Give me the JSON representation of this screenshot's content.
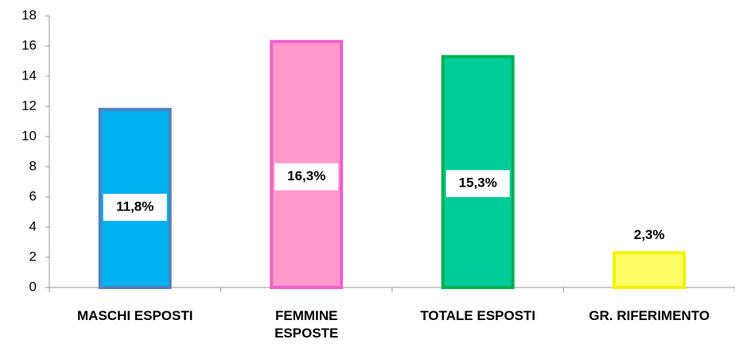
{
  "chart_data": {
    "type": "bar",
    "categories": [
      "MASCHI ESPOSTI",
      "FEMMINE ESPOSTE",
      "TOTALE ESPOSTI",
      "GR. RIFERIMENTO"
    ],
    "values": [
      11.8,
      16.3,
      15.3,
      2.3
    ],
    "value_labels": [
      "11,8%",
      "16,3%",
      "15,3%",
      "2,3%"
    ],
    "colors": [
      "#00b0f0",
      "#ff99cc",
      "#00cc99",
      "#ffff66"
    ],
    "edgecolors": [
      "#4f81bd",
      "#f060c8",
      "#00b050",
      "#f2f200"
    ],
    "ylim": [
      0,
      18
    ],
    "yticks": [
      0,
      2,
      4,
      6,
      8,
      10,
      12,
      14,
      16,
      18
    ],
    "grid": false
  }
}
